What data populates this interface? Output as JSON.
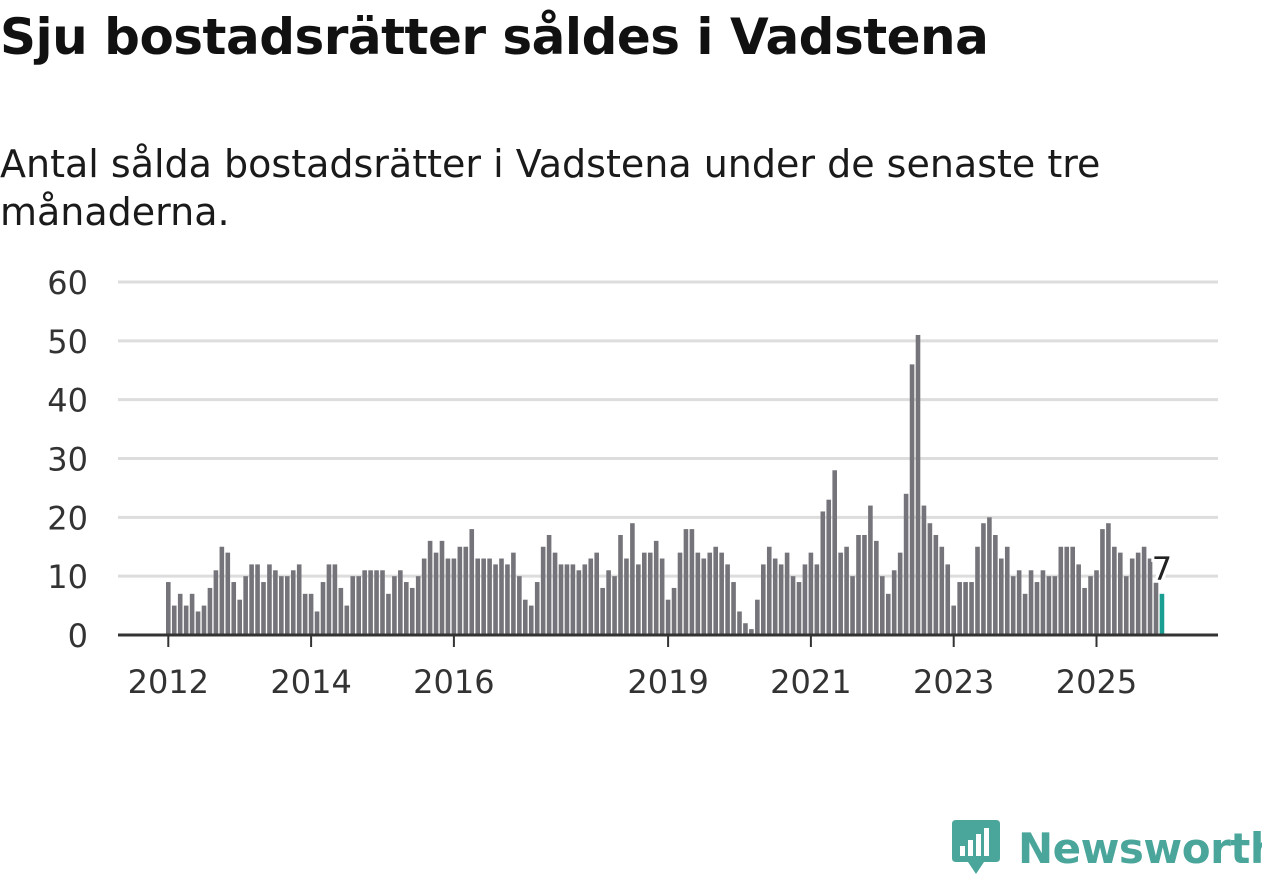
{
  "title": "Sju bostadsrätter såldes i Vadstena",
  "subtitle": "Antal sålda bostadsrätter i Vadstena under de senaste tre månaderna.",
  "brand": {
    "name": "Newsworthy",
    "color": "#4aa59b",
    "icon": "newsworthy-logo-icon"
  },
  "colors": {
    "bar": "#75747a",
    "highlight": "#1a9e91",
    "grid": "#dddddd",
    "axis": "#333333",
    "tick_label": "#333333"
  },
  "chart_data": {
    "type": "bar",
    "title": "Sju bostadsrätter såldes i Vadstena",
    "xlabel": "",
    "ylabel": "",
    "ylim": [
      0,
      60
    ],
    "yticks": [
      0,
      10,
      20,
      30,
      40,
      50,
      60
    ],
    "grid": true,
    "xticks": [
      {
        "label": "2012",
        "index": 0
      },
      {
        "label": "2014",
        "index": 24
      },
      {
        "label": "2016",
        "index": 48
      },
      {
        "label": "2019",
        "index": 84
      },
      {
        "label": "2021",
        "index": 108
      },
      {
        "label": "2023",
        "index": 132
      },
      {
        "label": "2025",
        "index": 156
      }
    ],
    "start": "2012-01",
    "values": [
      9,
      5,
      7,
      5,
      7,
      4,
      5,
      8,
      11,
      15,
      14,
      9,
      6,
      10,
      12,
      12,
      9,
      12,
      11,
      10,
      10,
      11,
      12,
      7,
      7,
      4,
      9,
      12,
      12,
      8,
      5,
      10,
      10,
      11,
      11,
      11,
      11,
      7,
      10,
      11,
      9,
      8,
      10,
      13,
      16,
      14,
      16,
      13,
      13,
      15,
      15,
      18,
      13,
      13,
      13,
      12,
      13,
      12,
      14,
      10,
      6,
      5,
      9,
      15,
      17,
      14,
      12,
      12,
      12,
      11,
      12,
      13,
      14,
      8,
      11,
      10,
      17,
      13,
      19,
      12,
      14,
      14,
      16,
      13,
      6,
      8,
      14,
      18,
      18,
      14,
      13,
      14,
      15,
      14,
      12,
      9,
      4,
      2,
      1,
      6,
      12,
      15,
      13,
      12,
      14,
      10,
      9,
      12,
      14,
      12,
      21,
      23,
      28,
      14,
      15,
      10,
      17,
      17,
      22,
      16,
      10,
      7,
      11,
      14,
      24,
      46,
      51,
      22,
      19,
      17,
      15,
      12,
      5,
      9,
      9,
      9,
      15,
      19,
      20,
      17,
      13,
      15,
      10,
      11,
      7,
      11,
      9,
      11,
      10,
      10,
      15,
      15,
      15,
      12,
      8,
      10,
      11,
      18,
      19,
      15,
      14,
      10,
      13,
      14,
      15,
      13,
      9,
      7
    ],
    "highlight_index": 167,
    "highlight_label": "7"
  }
}
